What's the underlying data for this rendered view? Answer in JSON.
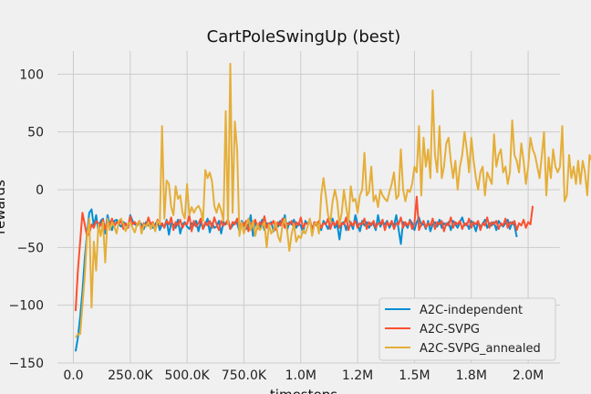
{
  "chart_data": {
    "type": "line",
    "title": "CartPoleSwingUp (best)",
    "xlabel": "timesteps",
    "ylabel": "rewards",
    "xlim": [
      -70000,
      2140000
    ],
    "ylim": [
      -150,
      120
    ],
    "xticks": [
      0,
      250000,
      500000,
      750000,
      1000000,
      1250000,
      1500000,
      1750000,
      2000000
    ],
    "xtick_labels": [
      "0.0",
      "250.0K",
      "500.0K",
      "750.0K",
      "1.0M",
      "1.2M",
      "1.5M",
      "1.8M",
      "2.0M"
    ],
    "yticks": [
      -150,
      -100,
      -50,
      0,
      50,
      100
    ],
    "ytick_labels": [
      "−150",
      "−100",
      "−50",
      "0",
      "50",
      "100"
    ],
    "grid": true,
    "legend_position": "bottom-right",
    "x_start": 10000,
    "x_step": 10000,
    "series": [
      {
        "name": "A2C-independent",
        "color": "#008fd5",
        "values": [
          -140,
          -128,
          -110,
          -88,
          -60,
          -38,
          -20,
          -17,
          -32,
          -22,
          -36,
          -27,
          -25,
          -38,
          -22,
          -30,
          -35,
          -27,
          -26,
          -30,
          -32,
          -28,
          -30,
          -33,
          -22,
          -27,
          -30,
          -31,
          -28,
          -30,
          -34,
          -28,
          -31,
          -29,
          -33,
          -30,
          -27,
          -35,
          -30,
          -32,
          -26,
          -39,
          -29,
          -30,
          -33,
          -26,
          -38,
          -30,
          -28,
          -32,
          -34,
          -29,
          -31,
          -27,
          -36,
          -28,
          -34,
          -30,
          -25,
          -37,
          -29,
          -33,
          -32,
          -27,
          -38,
          -28,
          -30,
          -26,
          -34,
          -31,
          -28,
          -29,
          -36,
          -27,
          -30,
          -34,
          -31,
          -22,
          -40,
          -28,
          -30,
          -33,
          -26,
          -35,
          -29,
          -30,
          -28,
          -36,
          -29,
          -32,
          -27,
          -31,
          -22,
          -35,
          -28,
          -30,
          -26,
          -33,
          -29,
          -31,
          -37,
          -27,
          -30,
          -26,
          -34,
          -29,
          -31,
          -28,
          -35,
          -27,
          -30,
          -34,
          -28,
          -25,
          -33,
          -30,
          -43,
          -29,
          -28,
          -35,
          -26,
          -29,
          -34,
          -22,
          -30,
          -36,
          -27,
          -31,
          -28,
          -33,
          -29,
          -30,
          -35,
          -22,
          -32,
          -28,
          -30,
          -27,
          -33,
          -29,
          -31,
          -22,
          -34,
          -47,
          -28,
          -30,
          -33,
          -26,
          -29,
          -35,
          -28,
          -24,
          -31,
          -29,
          -34,
          -27,
          -36,
          -30,
          -28,
          -32,
          -26,
          -33,
          -29,
          -31,
          -28,
          -35,
          -27,
          -30,
          -33,
          -28,
          -24,
          -31,
          -29,
          -34,
          -27,
          -30,
          -36,
          -28,
          -32,
          -30,
          -26,
          -33,
          -29,
          -31,
          -28,
          -35,
          -27,
          -30,
          -32,
          -29,
          -26,
          -34,
          -28,
          -31,
          -41
        ]
      },
      {
        "name": "A2C-SVPG",
        "color": "#fc4f30",
        "values": [
          -105,
          -70,
          -45,
          -20,
          -30,
          -40,
          -38,
          -30,
          -33,
          -27,
          -29,
          -31,
          -26,
          -34,
          -28,
          -30,
          -25,
          -32,
          -28,
          -30,
          -26,
          -34,
          -29,
          -33,
          -23,
          -30,
          -28,
          -31,
          -27,
          -35,
          -29,
          -32,
          -24,
          -30,
          -28,
          -34,
          -26,
          -31,
          -29,
          -33,
          -27,
          -30,
          -24,
          -35,
          -28,
          -31,
          -26,
          -33,
          -29,
          -30,
          -22,
          -36,
          -27,
          -32,
          -29,
          -25,
          -34,
          -28,
          -31,
          -27,
          -33,
          -24,
          -30,
          -35,
          -27,
          -31,
          -29,
          -26,
          -34,
          -28,
          -30,
          -25,
          -33,
          -28,
          -31,
          -27,
          -36,
          -29,
          -30,
          -26,
          -34,
          -28,
          -31,
          -23,
          -33,
          -29,
          -30,
          -27,
          -35,
          -28,
          -31,
          -25,
          -33,
          -29,
          -30,
          -27,
          -34,
          -28,
          -31,
          -24,
          -33,
          -29,
          -30,
          -26,
          -35,
          -28,
          -31,
          -27,
          -33,
          -29,
          -30,
          -25,
          -34,
          -28,
          -31,
          -27,
          -33,
          -29,
          -30,
          -24,
          -35,
          -28,
          -31,
          -27,
          -33,
          -29,
          -30,
          -25,
          -34,
          -28,
          -31,
          -27,
          -33,
          -29,
          -30,
          -26,
          -35,
          -28,
          -31,
          -27,
          -34,
          -29,
          -30,
          -24,
          -33,
          -28,
          -31,
          -27,
          -34,
          -29,
          -6,
          -35,
          -30,
          -27,
          -33,
          -29,
          -31,
          -25,
          -34,
          -28,
          -30,
          -27,
          -36,
          -29,
          -31,
          -24,
          -33,
          -28,
          -30,
          -27,
          -34,
          -29,
          -31,
          -25,
          -33,
          -28,
          -30,
          -27,
          -35,
          -29,
          -31,
          -24,
          -33,
          -28,
          -30,
          -27,
          -34,
          -29,
          -31,
          -25,
          -33,
          -28,
          -30,
          -27,
          -35,
          -29,
          -31,
          -26,
          -33,
          -28,
          -30,
          -14
        ]
      },
      {
        "name": "A2C-SVPG_annealed",
        "color": "#e5ae38",
        "values": [
          -128,
          -125,
          -125,
          -100,
          -75,
          -40,
          -25,
          -102,
          -45,
          -70,
          -30,
          -40,
          -28,
          -63,
          -25,
          -35,
          -28,
          -32,
          -38,
          -27,
          -25,
          -30,
          -36,
          -30,
          -28,
          -33,
          -37,
          -30,
          -27,
          -38,
          -30,
          -32,
          -28,
          -34,
          -29,
          -36,
          -27,
          -30,
          55,
          -25,
          8,
          5,
          -15,
          -22,
          3,
          -8,
          -5,
          -20,
          -25,
          5,
          -22,
          -15,
          -20,
          -16,
          -14,
          -18,
          -27,
          17,
          10,
          15,
          7,
          -14,
          -20,
          -12,
          -18,
          -27,
          68,
          -30,
          109,
          -20,
          59,
          35,
          -40,
          -28,
          -38,
          -30,
          -25,
          -35,
          -27,
          -40,
          -30,
          -35,
          -32,
          -28,
          -50,
          -30,
          -38,
          -35,
          -28,
          -40,
          -45,
          -30,
          -25,
          -35,
          -53,
          -38,
          -30,
          -45,
          -40,
          -42,
          -35,
          -38,
          -32,
          -25,
          -40,
          -30,
          -28,
          -38,
          -5,
          10,
          -5,
          -22,
          -28,
          -10,
          0,
          -10,
          -30,
          -20,
          0,
          -15,
          -28,
          3,
          -10,
          -8,
          -20,
          -5,
          0,
          32,
          -5,
          -2,
          20,
          -10,
          -5,
          -15,
          0,
          -5,
          -8,
          -10,
          -2,
          5,
          15,
          -8,
          -5,
          35,
          0,
          -10,
          0,
          -2,
          5,
          20,
          15,
          55,
          -5,
          45,
          20,
          35,
          10,
          86,
          30,
          15,
          55,
          10,
          20,
          40,
          45,
          25,
          10,
          25,
          0,
          20,
          30,
          50,
          35,
          15,
          45,
          25,
          10,
          0,
          15,
          20,
          -5,
          15,
          10,
          5,
          48,
          20,
          30,
          35,
          15,
          20,
          5,
          15,
          60,
          30,
          25,
          15,
          40,
          25,
          5,
          20,
          45,
          35,
          30,
          20,
          10,
          30,
          50,
          -5,
          28,
          10,
          35,
          20,
          15,
          20,
          55,
          -10,
          -5,
          30,
          10,
          20,
          5,
          25,
          5,
          25,
          15,
          -5,
          30,
          25
        ]
      }
    ]
  }
}
